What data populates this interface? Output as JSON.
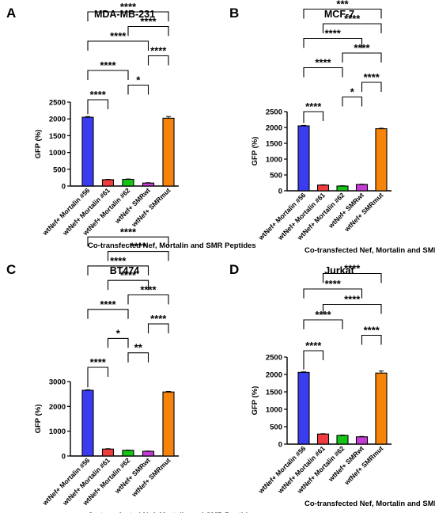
{
  "colors": {
    "mortalin56": "#3b3bf0",
    "mortalin61": "#ef3d3d",
    "mortalin62": "#15c515",
    "smrwt": "#c43bd6",
    "smrmut": "#f7840a",
    "ink": "#000000"
  },
  "chart_data": [
    {
      "panel_letter": "A",
      "type": "bar",
      "title": "MDA-MB-231",
      "xlabel": "Co-transfected Nef, Mortalin and SMR Peptides",
      "ylabel": "GFP (%)",
      "categories": [
        "wtNef+ Mortalin #56",
        "wtNef+ Mortalin #61",
        "wtNef+ Mortalin #62",
        "wtNef+ SMRwt",
        "wtNef+ SMRmut"
      ],
      "values": [
        2050,
        190,
        200,
        90,
        2020
      ],
      "errors": [
        20,
        10,
        10,
        10,
        50
      ],
      "ylim": [
        0,
        2500
      ],
      "yticks": [
        "0",
        "500",
        "1000",
        "1500",
        "2000",
        "2500"
      ],
      "significance": [
        {
          "from": 1,
          "to": 2,
          "label": "****"
        },
        {
          "from": 3,
          "to": 4,
          "label": "*"
        },
        {
          "from": 1,
          "to": 3,
          "label": "****"
        },
        {
          "from": 4,
          "to": 5,
          "label": "****"
        },
        {
          "from": 1,
          "to": 4,
          "label": "****"
        },
        {
          "from": 3,
          "to": 5,
          "label": "****"
        },
        {
          "from": 1,
          "to": 5,
          "label": "****"
        }
      ]
    },
    {
      "panel_letter": "B",
      "type": "bar",
      "title": "MCF-7",
      "xlabel": "Co-transfected Nef, Mortalin and SMR Peptides",
      "ylabel": "GFP (%)",
      "categories": [
        "wtNef+ Mortalin #56",
        "wtNef+ Mortalin #61",
        "wtNef+ Mortalin #62",
        "wtNef+ SMRwt",
        "wtNef+ SMRmut"
      ],
      "values": [
        2050,
        180,
        150,
        200,
        1960
      ],
      "errors": [
        15,
        10,
        10,
        10,
        15
      ],
      "ylim": [
        0,
        2500
      ],
      "yticks": [
        "0",
        "500",
        "1000",
        "1500",
        "2000",
        "2500"
      ],
      "significance": [
        {
          "from": 1,
          "to": 2,
          "label": "****"
        },
        {
          "from": 3,
          "to": 4,
          "label": "*"
        },
        {
          "from": 4,
          "to": 5,
          "label": "****"
        },
        {
          "from": 1,
          "to": 3,
          "label": "****"
        },
        {
          "from": 3,
          "to": 5,
          "label": "****"
        },
        {
          "from": 1,
          "to": 4,
          "label": "****"
        },
        {
          "from": 2,
          "to": 5,
          "label": "****"
        },
        {
          "from": 1,
          "to": 5,
          "label": "***"
        }
      ]
    },
    {
      "panel_letter": "C",
      "type": "bar",
      "title": "BT474",
      "xlabel": "Co-transfected Nef, Mortalin and SMR Peptides",
      "ylabel": "GFP (%)",
      "categories": [
        "wtNef+ Mortalin #56",
        "wtNef+ Mortalin #61",
        "wtNef+ Mortalin #62",
        "wtNef+ SMRwt",
        "wtNef+ SMRmut"
      ],
      "values": [
        2650,
        280,
        230,
        190,
        2580
      ],
      "errors": [
        20,
        15,
        10,
        10,
        20
      ],
      "ylim": [
        0,
        3000
      ],
      "yticks": [
        "0",
        "1000",
        "2000",
        "3000"
      ],
      "significance": [
        {
          "from": 1,
          "to": 2,
          "label": "****"
        },
        {
          "from": 3,
          "to": 4,
          "label": "**"
        },
        {
          "from": 2,
          "to": 3,
          "label": "*"
        },
        {
          "from": 4,
          "to": 5,
          "label": "****"
        },
        {
          "from": 1,
          "to": 3,
          "label": "****"
        },
        {
          "from": 3,
          "to": 5,
          "label": "****"
        },
        {
          "from": 2,
          "to": 4,
          "label": "****"
        },
        {
          "from": 1,
          "to": 4,
          "label": "****"
        },
        {
          "from": 2,
          "to": 5,
          "label": "****"
        },
        {
          "from": 1,
          "to": 5,
          "label": "****"
        }
      ]
    },
    {
      "panel_letter": "D",
      "type": "bar",
      "title": "Jurkat",
      "xlabel": "Co-transfected Nef, Mortalin and SMR Peptides",
      "ylabel": "GFP (%)",
      "categories": [
        "wtNef+ Mortalin #56",
        "wtNef+ Mortalin #61",
        "wtNef+ Mortalin #62",
        "wtNef+ SMRwt",
        "wtNef+ SMRmut"
      ],
      "values": [
        2060,
        290,
        250,
        210,
        2040
      ],
      "errors": [
        15,
        10,
        10,
        10,
        60
      ],
      "ylim": [
        0,
        2500
      ],
      "yticks": [
        "0",
        "500",
        "1000",
        "1500",
        "2000",
        "2500"
      ],
      "significance": [
        {
          "from": 1,
          "to": 2,
          "label": "****"
        },
        {
          "from": 4,
          "to": 5,
          "label": "****"
        },
        {
          "from": 1,
          "to": 3,
          "label": "****"
        },
        {
          "from": 2,
          "to": 5,
          "label": "****"
        },
        {
          "from": 1,
          "to": 4,
          "label": "****"
        },
        {
          "from": 2,
          "to": 5,
          "label": "****"
        }
      ]
    }
  ]
}
